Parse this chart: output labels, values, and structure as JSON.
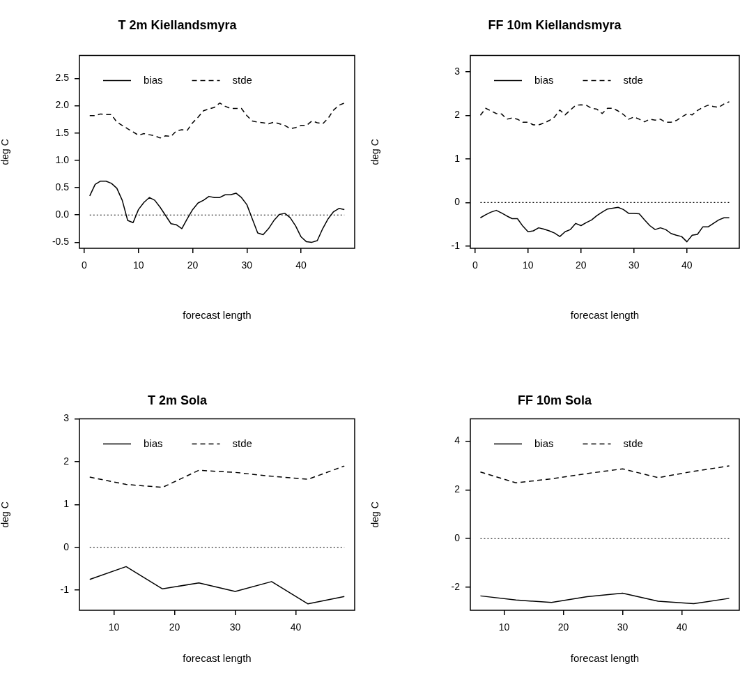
{
  "chart_data": [
    {
      "type": "line",
      "title": "T 2m Kiellandsmyra",
      "xlabel": "forecast length",
      "ylabel": "deg C",
      "legend": "top left",
      "grid": false,
      "marker": "none",
      "x": [
        1,
        2,
        3,
        4,
        5,
        6,
        7,
        8,
        9,
        10,
        11,
        12,
        13,
        14,
        15,
        16,
        17,
        18,
        19,
        20,
        21,
        22,
        23,
        24,
        25,
        26,
        27,
        28,
        29,
        30,
        31,
        32,
        33,
        34,
        35,
        36,
        37,
        38,
        39,
        40,
        41,
        42,
        43,
        44,
        45,
        46,
        47,
        48
      ],
      "series": [
        {
          "name": "bias",
          "color": "#000000",
          "line_style": "solid",
          "values": [
            0.35,
            0.56,
            0.62,
            0.62,
            0.58,
            0.49,
            0.27,
            -0.1,
            -0.14,
            0.1,
            0.23,
            0.32,
            0.27,
            0.14,
            -0.01,
            -0.16,
            -0.18,
            -0.25,
            -0.07,
            0.1,
            0.22,
            0.27,
            0.34,
            0.32,
            0.32,
            0.37,
            0.37,
            0.4,
            0.32,
            0.19,
            -0.07,
            -0.33,
            -0.36,
            -0.25,
            -0.1,
            0.01,
            0.03,
            -0.05,
            -0.2,
            -0.4,
            -0.49,
            -0.5,
            -0.47,
            -0.25,
            -0.07,
            0.06,
            0.12,
            0.1
          ]
        },
        {
          "name": "stde",
          "color": "#000000",
          "line_style": "dashed",
          "values": [
            1.82,
            1.82,
            1.85,
            1.84,
            1.84,
            1.7,
            1.64,
            1.58,
            1.52,
            1.46,
            1.49,
            1.47,
            1.45,
            1.41,
            1.45,
            1.44,
            1.54,
            1.56,
            1.55,
            1.69,
            1.79,
            1.91,
            1.94,
            1.97,
            2.05,
            1.99,
            1.95,
            1.95,
            1.95,
            1.82,
            1.72,
            1.7,
            1.69,
            1.67,
            1.7,
            1.67,
            1.64,
            1.58,
            1.6,
            1.64,
            1.64,
            1.72,
            1.69,
            1.67,
            1.77,
            1.92,
            2.01,
            2.05
          ]
        }
      ],
      "ref_lines": [
        {
          "axis": "y",
          "value": 0,
          "line_style": "dotted"
        }
      ],
      "xlim": [
        -0.9,
        49.9
      ],
      "xticks": [
        0,
        10,
        20,
        30,
        40
      ],
      "ylim": [
        -0.61,
        2.92
      ],
      "yticks": [
        -0.5,
        {
          "value": 0,
          "label": "0.0"
        },
        0.5,
        {
          "value": 1,
          "label": "1.0"
        },
        1.5,
        {
          "value": 2,
          "label": "2.0"
        },
        2.5
      ]
    },
    {
      "type": "line",
      "title": "FF 10m Kiellandsmyra",
      "xlabel": "forecast length",
      "ylabel": "deg C",
      "legend": "top left",
      "grid": false,
      "marker": "none",
      "x": [
        1,
        2,
        3,
        4,
        5,
        6,
        7,
        8,
        9,
        10,
        11,
        12,
        13,
        14,
        15,
        16,
        17,
        18,
        19,
        20,
        21,
        22,
        23,
        24,
        25,
        26,
        27,
        28,
        29,
        30,
        31,
        32,
        33,
        34,
        35,
        36,
        37,
        38,
        39,
        40,
        41,
        42,
        43,
        44,
        45,
        46,
        47,
        48
      ],
      "series": [
        {
          "name": "bias",
          "color": "#000000",
          "line_style": "solid",
          "values": [
            -0.35,
            -0.28,
            -0.22,
            -0.18,
            -0.24,
            -0.31,
            -0.37,
            -0.37,
            -0.54,
            -0.67,
            -0.65,
            -0.58,
            -0.61,
            -0.65,
            -0.7,
            -0.78,
            -0.67,
            -0.62,
            -0.48,
            -0.53,
            -0.46,
            -0.4,
            -0.3,
            -0.22,
            -0.15,
            -0.13,
            -0.11,
            -0.16,
            -0.25,
            -0.25,
            -0.26,
            -0.4,
            -0.53,
            -0.62,
            -0.58,
            -0.62,
            -0.71,
            -0.75,
            -0.78,
            -0.9,
            -0.75,
            -0.73,
            -0.56,
            -0.56,
            -0.48,
            -0.4,
            -0.35,
            -0.35
          ]
        },
        {
          "name": "stde",
          "color": "#000000",
          "line_style": "dashed",
          "values": [
            2.0,
            2.16,
            2.1,
            2.04,
            2.03,
            1.91,
            1.94,
            1.91,
            1.84,
            1.84,
            1.78,
            1.78,
            1.82,
            1.88,
            1.96,
            2.12,
            2.01,
            2.12,
            2.23,
            2.24,
            2.23,
            2.16,
            2.14,
            2.04,
            2.16,
            2.16,
            2.1,
            2.02,
            1.91,
            1.96,
            1.91,
            1.85,
            1.91,
            1.89,
            1.91,
            1.84,
            1.84,
            1.88,
            1.96,
            2.03,
            2.01,
            2.11,
            2.18,
            2.23,
            2.2,
            2.18,
            2.26,
            2.31
          ]
        }
      ],
      "ref_lines": [
        {
          "axis": "y",
          "value": 0,
          "line_style": "dotted"
        }
      ],
      "xlim": [
        -0.9,
        49.9
      ],
      "xticks": [
        0,
        10,
        20,
        30,
        40
      ],
      "ylim": [
        -1.05,
        3.37
      ],
      "yticks": [
        -1,
        0,
        1,
        2,
        3
      ]
    },
    {
      "type": "line",
      "title": "T 2m Sola",
      "xlabel": "forecast length",
      "ylabel": "deg C",
      "legend": "top left",
      "grid": false,
      "marker": "none",
      "x": [
        6,
        12,
        18,
        24,
        30,
        36,
        42,
        48
      ],
      "series": [
        {
          "name": "bias",
          "color": "#000000",
          "line_style": "solid",
          "values": [
            -0.75,
            -0.45,
            -0.97,
            -0.83,
            -1.03,
            -0.8,
            -1.32,
            -1.15
          ]
        },
        {
          "name": "stde",
          "color": "#000000",
          "line_style": "dashed",
          "values": [
            1.64,
            1.47,
            1.4,
            1.8,
            1.75,
            1.66,
            1.59,
            1.9
          ]
        }
      ],
      "ref_lines": [
        {
          "axis": "y",
          "value": 0,
          "line_style": "dotted"
        }
      ],
      "xlim": [
        4.3,
        49.7
      ],
      "xticks": [
        10,
        20,
        30,
        40
      ],
      "ylim": [
        -1.47,
        3
      ],
      "yticks": [
        -1,
        0,
        1,
        2,
        3
      ]
    },
    {
      "type": "line",
      "title": "FF 10m Sola",
      "xlabel": "forecast length",
      "ylabel": "deg C",
      "legend": "top left",
      "grid": false,
      "marker": "none",
      "x": [
        6,
        12,
        18,
        24,
        30,
        36,
        42,
        48
      ],
      "series": [
        {
          "name": "bias",
          "color": "#000000",
          "line_style": "solid",
          "values": [
            -2.35,
            -2.52,
            -2.62,
            -2.38,
            -2.24,
            -2.57,
            -2.67,
            -2.45
          ]
        },
        {
          "name": "stde",
          "color": "#000000",
          "line_style": "dashed",
          "values": [
            2.73,
            2.29,
            2.45,
            2.67,
            2.86,
            2.5,
            2.76,
            2.98
          ]
        }
      ],
      "ref_lines": [
        {
          "axis": "y",
          "value": 0,
          "line_style": "dotted"
        }
      ],
      "xlim": [
        4.3,
        49.7
      ],
      "xticks": [
        10,
        20,
        30,
        40
      ],
      "ylim": [
        -2.94,
        4.91
      ],
      "yticks": [
        -2,
        0,
        2,
        4
      ]
    }
  ]
}
